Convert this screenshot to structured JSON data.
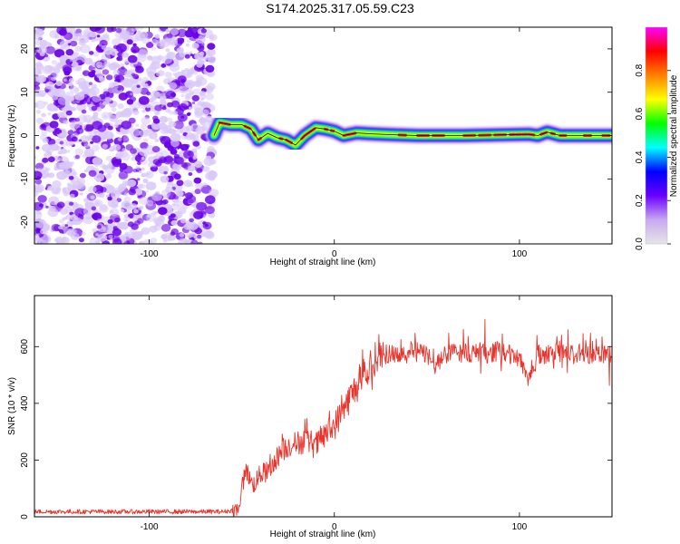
{
  "title": "S174.2025.317.05.59.C23",
  "colors": {
    "signal": "#e8342c",
    "scatter_dark": "#6a00e8",
    "scatter_light": "#d9c8f8",
    "frame": "#000000"
  },
  "chart_data": [
    {
      "type": "heatmap",
      "name": "spectrogram",
      "xlabel": "Height of straight line (km)",
      "ylabel": "Frequency (Hz)",
      "xlim": [
        -162,
        150
      ],
      "ylim": [
        -25,
        25
      ],
      "xticks": [
        -100,
        0,
        100
      ],
      "xtick_labels": [
        "-100",
        "0",
        "100"
      ],
      "yticks": [
        -20,
        -10,
        0,
        10,
        20
      ],
      "ytick_labels": [
        "-20",
        "-10",
        "0",
        "10",
        "20"
      ],
      "noise_region_x": [
        -162,
        -65
      ],
      "signal_start_x": -65,
      "signal_track": [
        {
          "x": -65,
          "y": 0
        },
        {
          "x": -62,
          "y": 3
        },
        {
          "x": -56,
          "y": 2.5
        },
        {
          "x": -50,
          "y": 2.5
        },
        {
          "x": -45,
          "y": 1.5
        },
        {
          "x": -41,
          "y": -1
        },
        {
          "x": -36,
          "y": 0.5
        },
        {
          "x": -31,
          "y": -0.5
        },
        {
          "x": -26,
          "y": -1
        },
        {
          "x": -21,
          "y": -2.2
        },
        {
          "x": -16,
          "y": 0
        },
        {
          "x": -10,
          "y": 1.8
        },
        {
          "x": -5,
          "y": 1.5
        },
        {
          "x": 0,
          "y": 1
        },
        {
          "x": 5,
          "y": 0
        },
        {
          "x": 12,
          "y": 0.6
        },
        {
          "x": 20,
          "y": 0.4
        },
        {
          "x": 30,
          "y": 0.2
        },
        {
          "x": 45,
          "y": 0
        },
        {
          "x": 70,
          "y": 0
        },
        {
          "x": 95,
          "y": 0.2
        },
        {
          "x": 105,
          "y": 0.3
        },
        {
          "x": 110,
          "y": 0
        },
        {
          "x": 115,
          "y": 0.8
        },
        {
          "x": 122,
          "y": 0
        },
        {
          "x": 135,
          "y": 0
        },
        {
          "x": 150,
          "y": 0
        }
      ],
      "colorbar": {
        "label": "Normalized spectral amplitude",
        "range": [
          0,
          1
        ],
        "ticks": [
          0.0,
          0.2,
          0.4,
          0.6,
          0.8
        ],
        "tick_labels": [
          "0.0",
          "0.2",
          "0.4",
          "0.6",
          "0.8"
        ],
        "stops": [
          "#e6e6e6",
          "#c8a8f0",
          "#6a00ff",
          "#0000ff",
          "#00ffff",
          "#00ff00",
          "#ffff00",
          "#ff8000",
          "#ff0000",
          "#ff00ff"
        ]
      }
    },
    {
      "type": "line",
      "name": "snr",
      "xlabel": "Height of straight line (km)",
      "ylabel": "SNR (10 * v/v)",
      "xlim": [
        -162,
        150
      ],
      "ylim": [
        0,
        780
      ],
      "xticks": [
        -100,
        0,
        100
      ],
      "xtick_labels": [
        "-100",
        "0",
        "100"
      ],
      "yticks": [
        0,
        200,
        400,
        600
      ],
      "ytick_labels": [
        "0",
        "200",
        "400",
        "600"
      ],
      "series": [
        {
          "name": "SNR",
          "color": "#e8342c",
          "trend": [
            {
              "x": -162,
              "y": 18
            },
            {
              "x": -60,
              "y": 18
            },
            {
              "x": -52,
              "y": 25
            },
            {
              "x": -48,
              "y": 170
            },
            {
              "x": -44,
              "y": 110
            },
            {
              "x": -40,
              "y": 150
            },
            {
              "x": -35,
              "y": 160
            },
            {
              "x": -30,
              "y": 220
            },
            {
              "x": -25,
              "y": 250
            },
            {
              "x": -20,
              "y": 260
            },
            {
              "x": -15,
              "y": 270
            },
            {
              "x": -10,
              "y": 250
            },
            {
              "x": -5,
              "y": 290
            },
            {
              "x": 0,
              "y": 320
            },
            {
              "x": 5,
              "y": 380
            },
            {
              "x": 10,
              "y": 440
            },
            {
              "x": 15,
              "y": 480
            },
            {
              "x": 20,
              "y": 520
            },
            {
              "x": 25,
              "y": 550
            },
            {
              "x": 30,
              "y": 575
            },
            {
              "x": 40,
              "y": 585
            },
            {
              "x": 50,
              "y": 575
            },
            {
              "x": 55,
              "y": 530
            },
            {
              "x": 60,
              "y": 575
            },
            {
              "x": 70,
              "y": 580
            },
            {
              "x": 80,
              "y": 575
            },
            {
              "x": 90,
              "y": 580
            },
            {
              "x": 100,
              "y": 560
            },
            {
              "x": 105,
              "y": 490
            },
            {
              "x": 110,
              "y": 560
            },
            {
              "x": 120,
              "y": 580
            },
            {
              "x": 130,
              "y": 570
            },
            {
              "x": 140,
              "y": 575
            },
            {
              "x": 150,
              "y": 580
            }
          ]
        }
      ]
    }
  ]
}
